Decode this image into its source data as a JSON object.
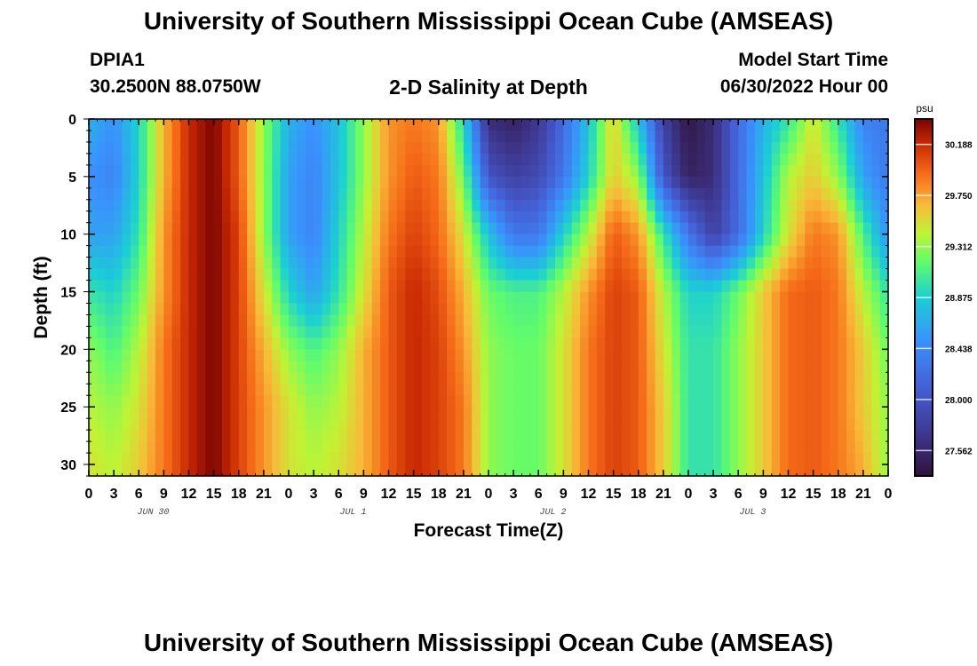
{
  "page": {
    "title": "University of Southern Mississippi Ocean Cube (AMSEAS)",
    "footer_title": "University of Southern Mississippi Ocean Cube (AMSEAS)",
    "station_id": "DPIA1",
    "station_coords": "30.2500N  88.0750W",
    "plot_title": "2-D Salinity at Depth",
    "model_start_label": "Model Start Time",
    "model_start_value": "06/30/2022 Hour 00"
  },
  "chart_data": {
    "type": "heatmap",
    "title": "2-D Salinity at Depth",
    "xlabel": "Forecast Time(Z)",
    "ylabel": "Depth (ft)",
    "x_range_hours": [
      0,
      96
    ],
    "ylim": [
      0,
      31
    ],
    "y_inverted": true,
    "x_tick_labels": [
      "0",
      "3",
      "6",
      "9",
      "12",
      "15",
      "18",
      "21",
      "0",
      "3",
      "6",
      "9",
      "12",
      "15",
      "18",
      "21",
      "0",
      "3",
      "6",
      "9",
      "12",
      "15",
      "18",
      "21",
      "0",
      "3",
      "6",
      "9",
      "12",
      "15",
      "18",
      "21",
      "0"
    ],
    "y_ticks": [
      0,
      5,
      10,
      15,
      20,
      25,
      30
    ],
    "day_labels": [
      "JUN 30",
      "JUL 1",
      "JUL 2",
      "JUL 3"
    ],
    "colorbar": {
      "unit": "psu",
      "min": 27.344,
      "max": 30.406,
      "tick_values": [
        30.188,
        29.75,
        29.312,
        28.875,
        28.438,
        28.0,
        27.562
      ],
      "tick_labels": [
        "30.188",
        "29.750",
        "29.312",
        "28.875",
        "28.438",
        "28.000",
        "27.562"
      ]
    },
    "depths_ft": [
      0,
      5,
      10,
      15,
      20,
      25,
      30
    ],
    "hours": [
      0,
      3,
      6,
      9,
      12,
      15,
      18,
      21,
      24,
      27,
      30,
      33,
      36,
      39,
      42,
      45,
      48,
      51,
      54,
      57,
      60,
      63,
      66,
      69,
      72,
      75,
      78,
      81,
      84,
      87,
      90,
      93,
      96
    ],
    "salinity_psu": [
      [
        28.7,
        28.5,
        28.9,
        29.7,
        30.2,
        30.4,
        30.0,
        29.3,
        28.7,
        28.5,
        28.8,
        29.3,
        29.8,
        29.9,
        29.8,
        28.9,
        27.6,
        27.5,
        27.7,
        28.2,
        28.8,
        29.6,
        28.8,
        27.8,
        27.4,
        27.6,
        28.2,
        28.7,
        29.0,
        29.5,
        29.0,
        28.4,
        28.3
      ],
      [
        28.5,
        28.4,
        28.9,
        29.7,
        30.2,
        30.4,
        30.0,
        29.3,
        28.6,
        28.4,
        28.8,
        29.3,
        29.8,
        30.0,
        29.9,
        29.2,
        28.0,
        27.8,
        27.9,
        28.3,
        28.9,
        29.6,
        29.3,
        28.0,
        27.5,
        27.6,
        28.2,
        28.8,
        29.4,
        29.6,
        29.3,
        28.6,
        28.3
      ],
      [
        28.6,
        28.6,
        29.0,
        29.8,
        30.2,
        30.4,
        30.1,
        29.3,
        28.6,
        28.4,
        28.9,
        29.4,
        29.9,
        30.1,
        29.95,
        29.5,
        28.8,
        28.3,
        28.3,
        28.9,
        29.4,
        30.0,
        29.8,
        29.0,
        28.3,
        27.8,
        28.2,
        28.9,
        29.5,
        29.9,
        29.8,
        29.1,
        28.5
      ],
      [
        29.0,
        28.9,
        29.2,
        29.8,
        30.2,
        30.4,
        30.1,
        29.5,
        28.9,
        28.6,
        29.0,
        29.5,
        30.0,
        30.2,
        30.05,
        29.7,
        29.2,
        29.1,
        29.1,
        29.4,
        29.8,
        30.1,
        30.0,
        29.4,
        28.9,
        28.9,
        29.2,
        29.6,
        29.95,
        30.0,
        29.9,
        29.4,
        29.0
      ],
      [
        29.3,
        29.1,
        29.4,
        29.9,
        30.2,
        30.4,
        30.1,
        29.7,
        29.3,
        29.1,
        29.3,
        29.7,
        30.0,
        30.2,
        30.1,
        29.8,
        29.3,
        29.2,
        29.2,
        29.5,
        29.9,
        30.1,
        30.0,
        29.5,
        29.0,
        29.0,
        29.3,
        29.6,
        29.95,
        30.0,
        29.9,
        29.6,
        29.2
      ],
      [
        29.4,
        29.3,
        29.5,
        29.9,
        30.2,
        30.4,
        30.1,
        29.8,
        29.5,
        29.3,
        29.4,
        29.7,
        30.0,
        30.2,
        30.1,
        29.9,
        29.3,
        29.2,
        29.2,
        29.5,
        29.9,
        30.1,
        30.0,
        29.6,
        29.0,
        29.0,
        29.3,
        29.6,
        29.95,
        30.0,
        29.9,
        29.6,
        29.3
      ],
      [
        29.5,
        29.4,
        29.6,
        29.9,
        30.2,
        30.4,
        30.1,
        29.8,
        29.5,
        29.4,
        29.5,
        29.7,
        30.0,
        30.2,
        30.1,
        29.9,
        29.3,
        29.2,
        29.2,
        29.5,
        29.9,
        30.1,
        30.0,
        29.6,
        29.0,
        29.0,
        29.3,
        29.6,
        29.95,
        30.0,
        29.9,
        29.7,
        29.3
      ]
    ]
  }
}
